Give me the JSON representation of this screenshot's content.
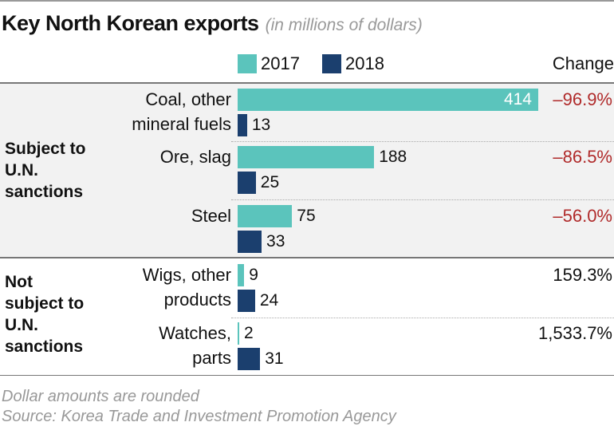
{
  "chart_data": {
    "type": "bar",
    "orientation": "horizontal",
    "title": "Key North Korean exports",
    "subtitle": "(in millions of dollars)",
    "change_header": "Change",
    "series": [
      {
        "name": "2017",
        "color": "#5bc4bc",
        "values": [
          414,
          188,
          75,
          9,
          2
        ]
      },
      {
        "name": "2018",
        "color": "#1b3f6e",
        "values": [
          13,
          25,
          33,
          24,
          31
        ]
      }
    ],
    "categories": [
      {
        "label1": "Coal, other",
        "label2": "mineral fuels",
        "change": "–96.9%"
      },
      {
        "label1": "Ore, slag",
        "label2": "",
        "change": "–86.5%"
      },
      {
        "label1": "Steel",
        "label2": "",
        "change": "–56.0%"
      },
      {
        "label1": "Wigs, other",
        "label2": "products",
        "change": "159.3%"
      },
      {
        "label1": "Watches,",
        "label2": "parts",
        "change": "1,533.7%"
      }
    ],
    "groups": [
      {
        "lines": [
          "Subject to",
          "U.N.",
          "sanctions"
        ]
      },
      {
        "lines": [
          "Not",
          "subject to",
          "U.N.",
          "sanctions"
        ]
      }
    ],
    "negative_color": "#b02a2a",
    "notes": [
      "Dollar amounts are rounded",
      "Source: Korea Trade and Investment Promotion Agency"
    ]
  }
}
